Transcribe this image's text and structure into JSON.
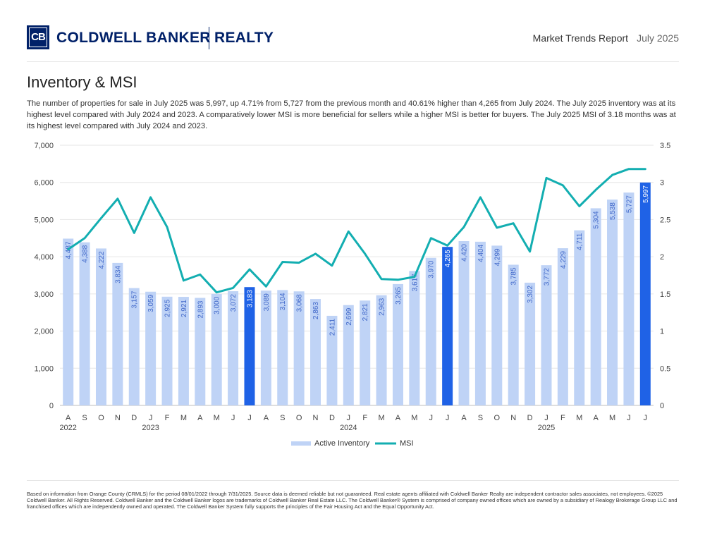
{
  "header": {
    "logo_mark": "CB",
    "brand_left": "COLDWELL BANKER",
    "brand_right": "REALTY",
    "report_title": "Market Trends Report",
    "report_date": "July 2025"
  },
  "section": {
    "title": "Inventory & MSI",
    "description": "The number of properties for sale in July 2025 was 5,997, up 4.71% from 5,727 from the previous month and 40.61% higher than 4,265 from July 2024. The July 2025 inventory was at its highest level compared with July 2024 and 2023. A comparatively lower MSI is more beneficial for sellers while a higher MSI is better for buyers. The July 2025 MSI of 3.18 months was at its highest level compared with July 2024 and 2023."
  },
  "colors": {
    "bar": "#bfd3f6",
    "bar_highlight": "#1f62e6",
    "line": "#13aeb1",
    "label_on_bar": "#3f67c9",
    "label_on_highlight": "#ffffff"
  },
  "chart_data": {
    "type": "bar+line",
    "categories": [
      "A",
      "S",
      "O",
      "N",
      "D",
      "J",
      "F",
      "M",
      "A",
      "M",
      "J",
      "J",
      "A",
      "S",
      "O",
      "N",
      "D",
      "J",
      "F",
      "M",
      "A",
      "M",
      "J",
      "J",
      "A",
      "S",
      "O",
      "N",
      "D",
      "J",
      "F",
      "M",
      "A",
      "M",
      "J",
      "J"
    ],
    "year_labels": [
      {
        "index": 0,
        "label": "2022"
      },
      {
        "index": 5,
        "label": "2023"
      },
      {
        "index": 17,
        "label": "2024"
      },
      {
        "index": 29,
        "label": "2025"
      }
    ],
    "series": [
      {
        "name": "Active Inventory",
        "type": "bar",
        "axis": "left",
        "values": [
          4487,
          4388,
          4222,
          3834,
          3157,
          3059,
          2925,
          2921,
          2893,
          3000,
          3072,
          3183,
          3089,
          3104,
          3068,
          2863,
          2411,
          2699,
          2821,
          2963,
          3265,
          3617,
          3970,
          4265,
          4420,
          4404,
          4299,
          3785,
          3302,
          3772,
          4229,
          4711,
          5304,
          5538,
          5727,
          5997
        ],
        "labels": [
          "4,487",
          "4,388",
          "4,222",
          "3,834",
          "3,157",
          "3,059",
          "2,925",
          "2,921",
          "2,893",
          "3,000",
          "3,072",
          "3,183",
          "3,089",
          "3,104",
          "3,068",
          "2,863",
          "2,411",
          "2,699",
          "2,821",
          "2,963",
          "3,265",
          "3,617",
          "3,970",
          "4,265",
          "4,420",
          "4,404",
          "4,299",
          "3,785",
          "3,302",
          "3,772",
          "4,229",
          "4,711",
          "5,304",
          "5,538",
          "5,727",
          "5,997"
        ],
        "highlight": [
          11,
          23,
          35
        ]
      },
      {
        "name": "MSI",
        "type": "line",
        "axis": "right",
        "values": [
          2.1,
          2.25,
          2.52,
          2.78,
          2.32,
          2.8,
          2.4,
          1.68,
          1.76,
          1.52,
          1.58,
          1.83,
          1.6,
          1.93,
          1.92,
          2.04,
          1.88,
          2.34,
          2.04,
          1.7,
          1.69,
          1.73,
          2.25,
          2.15,
          2.4,
          2.8,
          2.39,
          2.45,
          2.07,
          3.06,
          2.96,
          2.68,
          2.9,
          3.1,
          3.18,
          3.18
        ]
      }
    ],
    "y_left": {
      "min": 0,
      "max": 7000,
      "ticks": [
        "7,000",
        "6,000",
        "5,000",
        "4,000",
        "3,000",
        "2,000",
        "1,000",
        "0"
      ],
      "tick_values": [
        7000,
        6000,
        5000,
        4000,
        3000,
        2000,
        1000,
        0
      ]
    },
    "y_right": {
      "min": 0,
      "max": 3.5,
      "ticks": [
        "3.5",
        "3",
        "2.5",
        "2",
        "1.5",
        "1",
        "0.5",
        "0"
      ],
      "tick_values": [
        3.5,
        3,
        2.5,
        2,
        1.5,
        1,
        0.5,
        0
      ]
    },
    "legend": {
      "position": "bottom-center",
      "items": [
        "Active Inventory",
        "MSI"
      ]
    },
    "grid": true
  },
  "footer": {
    "disclaimer": "Based on information from Orange County (CRMLS) for the period 08/01/2022 through 7/31/2025. Source data is deemed reliable but not guaranteed. Real estate agents affiliated with Coldwell Banker Realty are independent contractor sales associates, not employees. ©2025 Coldwell Banker. All Rights Reserved. Coldwell Banker and the Coldwell Banker logos are trademarks of Coldwell Banker Real Estate LLC. The Coldwell Banker® System is comprised of company owned offices which are owned by a subsidiary of Realogy Brokerage Group LLC and franchised offices which are independently owned and operated. The Coldwell Banker System fully supports the principles of the Fair Housing Act and the Equal Opportunity Act."
  }
}
